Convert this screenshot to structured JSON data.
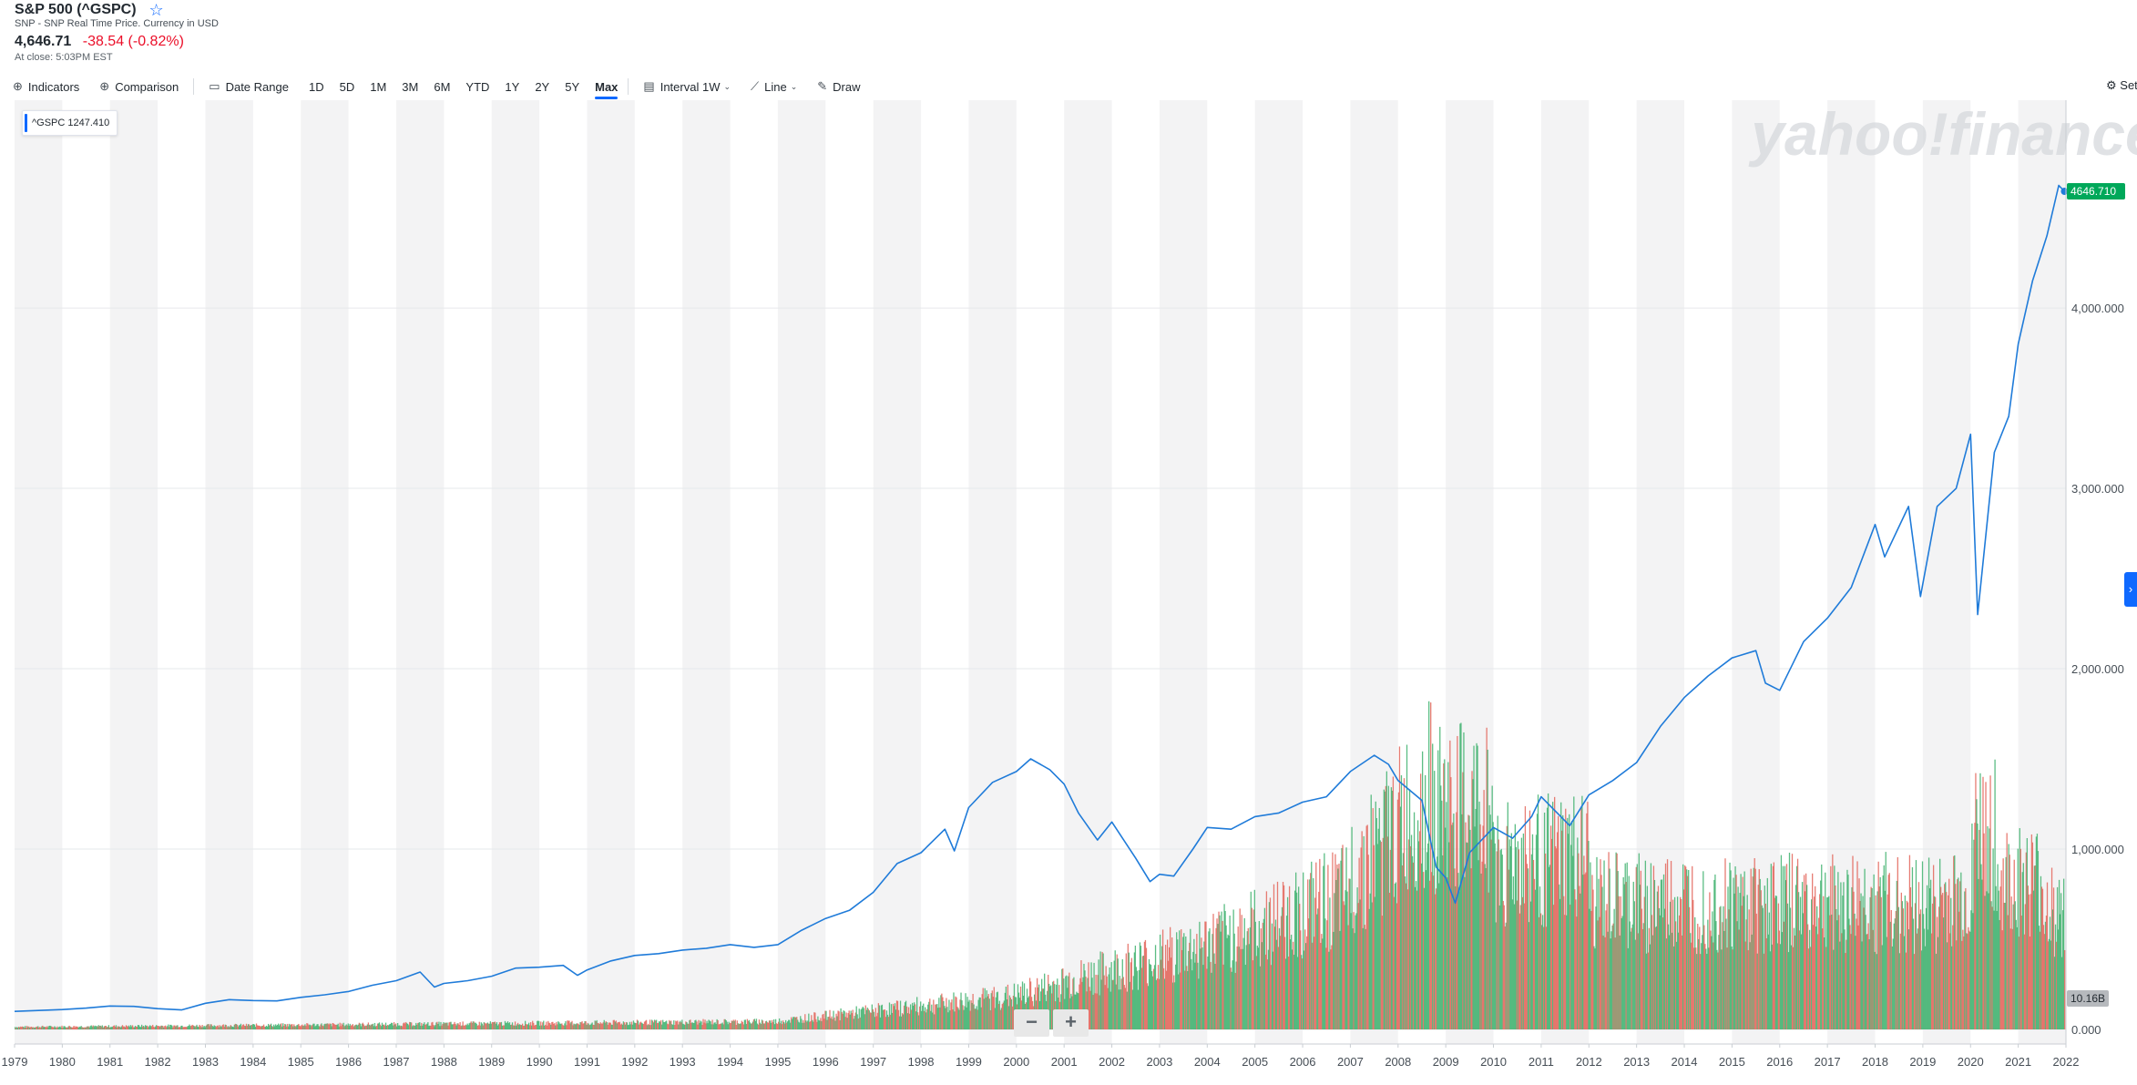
{
  "header": {
    "title": "S&P 500 (^GSPC)",
    "subtitle": "SNP - SNP Real Time Price. Currency in USD",
    "price": "4,646.71",
    "change": "-38.54 (-0.82%)",
    "close_time": "At close: 5:03PM EST",
    "colors": {
      "negative": "#eb0f29",
      "accent": "#0f69ff"
    }
  },
  "toolbar": {
    "indicators": "Indicators",
    "comparison": "Comparison",
    "date_range": "Date Range",
    "ranges": [
      "1D",
      "5D",
      "1M",
      "3M",
      "6M",
      "YTD",
      "1Y",
      "2Y",
      "5Y",
      "Max"
    ],
    "active_range": "Max",
    "interval_label": "Interval",
    "interval_value": "1W",
    "chart_type": "Line",
    "draw": "Draw",
    "settings": "Settings"
  },
  "legend": {
    "label": "^GSPC 1247.410"
  },
  "watermark": "yahoo!finance",
  "zoom": {
    "minus": "−",
    "plus": "+"
  },
  "side_tab": "›",
  "chart_data": {
    "type": "line",
    "x_labels": [
      "1979",
      "1980",
      "1981",
      "1982",
      "1983",
      "1984",
      "1985",
      "1986",
      "1987",
      "1988",
      "1989",
      "1990",
      "1991",
      "1992",
      "1993",
      "1994",
      "1995",
      "1996",
      "1997",
      "1998",
      "1999",
      "2000",
      "2001",
      "2002",
      "2003",
      "2004",
      "2005",
      "2006",
      "2007",
      "2008",
      "2009",
      "2010",
      "2011",
      "2012",
      "2013",
      "2014",
      "2015",
      "2016",
      "2017",
      "2018",
      "2019",
      "2020",
      "2021",
      "2022"
    ],
    "y_ticks": [
      "0.000",
      "1,000.000",
      "2,000.000",
      "3,000.000",
      "4,000.000"
    ],
    "ylim": [
      0,
      4950
    ],
    "xlim": [
      1979.0,
      2022.0
    ],
    "last_price_label": "4646.710",
    "volume_label": "10.16B",
    "series": [
      {
        "color": "#1f7bd9",
        "points": [
          [
            1979.0,
            100
          ],
          [
            1979.5,
            105
          ],
          [
            1980.0,
            110
          ],
          [
            1980.5,
            118
          ],
          [
            1981.0,
            130
          ],
          [
            1981.5,
            128
          ],
          [
            1982.0,
            115
          ],
          [
            1982.5,
            108
          ],
          [
            1983.0,
            145
          ],
          [
            1983.5,
            165
          ],
          [
            1984.0,
            160
          ],
          [
            1984.5,
            158
          ],
          [
            1985.0,
            178
          ],
          [
            1985.5,
            192
          ],
          [
            1986.0,
            210
          ],
          [
            1986.5,
            245
          ],
          [
            1987.0,
            270
          ],
          [
            1987.5,
            318
          ],
          [
            1987.8,
            235
          ],
          [
            1988.0,
            255
          ],
          [
            1988.5,
            270
          ],
          [
            1989.0,
            295
          ],
          [
            1989.5,
            340
          ],
          [
            1990.0,
            345
          ],
          [
            1990.5,
            355
          ],
          [
            1990.8,
            300
          ],
          [
            1991.0,
            330
          ],
          [
            1991.5,
            380
          ],
          [
            1992.0,
            410
          ],
          [
            1992.5,
            420
          ],
          [
            1993.0,
            440
          ],
          [
            1993.5,
            450
          ],
          [
            1994.0,
            470
          ],
          [
            1994.5,
            455
          ],
          [
            1995.0,
            470
          ],
          [
            1995.5,
            550
          ],
          [
            1996.0,
            615
          ],
          [
            1996.5,
            660
          ],
          [
            1997.0,
            760
          ],
          [
            1997.5,
            920
          ],
          [
            1998.0,
            980
          ],
          [
            1998.5,
            1110
          ],
          [
            1998.7,
            990
          ],
          [
            1999.0,
            1230
          ],
          [
            1999.5,
            1370
          ],
          [
            2000.0,
            1430
          ],
          [
            2000.3,
            1500
          ],
          [
            2000.7,
            1440
          ],
          [
            2001.0,
            1360
          ],
          [
            2001.3,
            1200
          ],
          [
            2001.7,
            1050
          ],
          [
            2002.0,
            1150
          ],
          [
            2002.5,
            950
          ],
          [
            2002.8,
            820
          ],
          [
            2003.0,
            860
          ],
          [
            2003.3,
            850
          ],
          [
            2003.7,
            1000
          ],
          [
            2004.0,
            1120
          ],
          [
            2004.5,
            1110
          ],
          [
            2005.0,
            1180
          ],
          [
            2005.5,
            1200
          ],
          [
            2006.0,
            1260
          ],
          [
            2006.5,
            1290
          ],
          [
            2007.0,
            1430
          ],
          [
            2007.5,
            1520
          ],
          [
            2007.8,
            1470
          ],
          [
            2008.0,
            1380
          ],
          [
            2008.5,
            1270
          ],
          [
            2008.8,
            900
          ],
          [
            2009.0,
            840
          ],
          [
            2009.2,
            700
          ],
          [
            2009.5,
            980
          ],
          [
            2010.0,
            1120
          ],
          [
            2010.4,
            1060
          ],
          [
            2010.8,
            1180
          ],
          [
            2011.0,
            1290
          ],
          [
            2011.6,
            1130
          ],
          [
            2012.0,
            1300
          ],
          [
            2012.5,
            1380
          ],
          [
            2013.0,
            1480
          ],
          [
            2013.5,
            1680
          ],
          [
            2014.0,
            1840
          ],
          [
            2014.5,
            1960
          ],
          [
            2015.0,
            2060
          ],
          [
            2015.5,
            2100
          ],
          [
            2015.7,
            1920
          ],
          [
            2016.0,
            1880
          ],
          [
            2016.5,
            2150
          ],
          [
            2017.0,
            2280
          ],
          [
            2017.5,
            2450
          ],
          [
            2018.0,
            2800
          ],
          [
            2018.2,
            2620
          ],
          [
            2018.7,
            2900
          ],
          [
            2018.95,
            2400
          ],
          [
            2019.3,
            2900
          ],
          [
            2019.7,
            3000
          ],
          [
            2020.0,
            3300
          ],
          [
            2020.15,
            2300
          ],
          [
            2020.5,
            3200
          ],
          [
            2020.8,
            3400
          ],
          [
            2021.0,
            3800
          ],
          [
            2021.3,
            4150
          ],
          [
            2021.6,
            4400
          ],
          [
            2021.85,
            4680
          ],
          [
            2021.97,
            4646.71
          ]
        ]
      }
    ],
    "volume": {
      "up_color": "#3fb16e",
      "down_color": "#e3655b"
    }
  }
}
